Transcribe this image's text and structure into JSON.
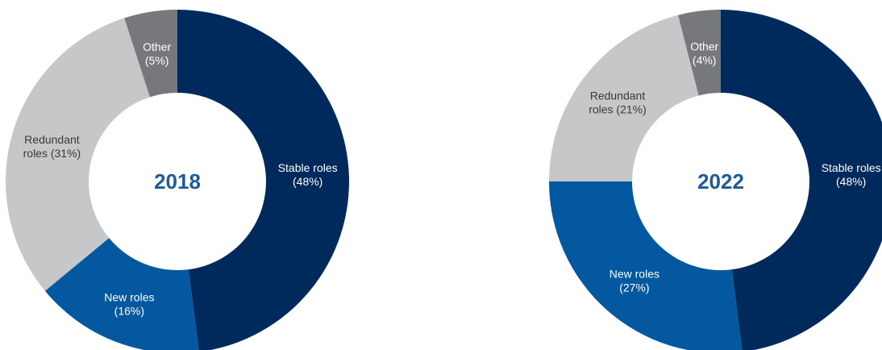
{
  "colors": {
    "stable": "#002a5c",
    "new": "#0358a0",
    "redundant": "#c6c7c9",
    "other": "#77787b",
    "center_text": "#1e5a9c"
  },
  "chart_data": [
    {
      "type": "pie",
      "title": "2018",
      "slices": [
        {
          "key": "stable",
          "line1": "Stable roles",
          "line2": "(48%)",
          "value": 48
        },
        {
          "key": "new",
          "line1": "New roles",
          "line2": "(16%)",
          "value": 16
        },
        {
          "key": "redundant",
          "line1": "Redundant",
          "line2": "roles (31%)",
          "value": 31
        },
        {
          "key": "other",
          "line1": "Other",
          "line2": "(5%)",
          "value": 5
        }
      ]
    },
    {
      "type": "pie",
      "title": "2022",
      "slices": [
        {
          "key": "stable",
          "line1": "Stable roles",
          "line2": "(48%)",
          "value": 48
        },
        {
          "key": "new",
          "line1": "New roles",
          "line2": "(27%)",
          "value": 27
        },
        {
          "key": "redundant",
          "line1": "Redundant",
          "line2": "roles (21%)",
          "value": 21
        },
        {
          "key": "other",
          "line1": "Other",
          "line2": "(4%)",
          "value": 4
        }
      ]
    }
  ]
}
